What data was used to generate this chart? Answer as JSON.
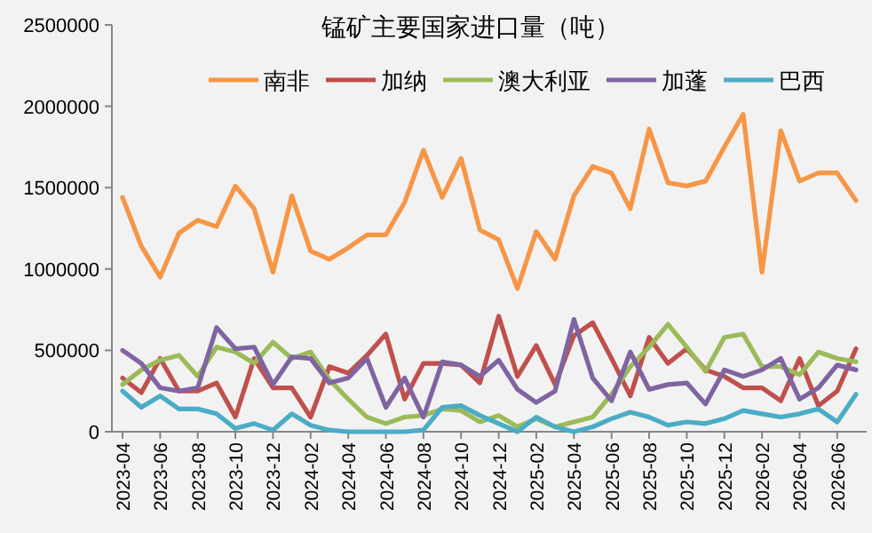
{
  "chart_data": {
    "type": "line",
    "title": "锰矿主要国家进口量（吨）",
    "categories": [
      "2023-04",
      null,
      "2023-06",
      null,
      "2023-08",
      null,
      "2023-10",
      null,
      "2023-12",
      null,
      "2024-02",
      null,
      "2024-04",
      null,
      "2024-06",
      null,
      "2024-08",
      null,
      "2024-10",
      null,
      "2024-12",
      null,
      "2025-02",
      null,
      "2025-04",
      null,
      "2025-06",
      null,
      "2025-08",
      null,
      "2025-10",
      null,
      "2025-12",
      null,
      "2026-02",
      null,
      "2026-04",
      null,
      "2026-06",
      null
    ],
    "series": [
      {
        "name": "南非",
        "color": "#f79646",
        "values": [
          1440000,
          1140000,
          950000,
          1220000,
          1300000,
          1260000,
          1510000,
          1370000,
          980000,
          1450000,
          1110000,
          1060000,
          1130000,
          1210000,
          1210000,
          1410000,
          1730000,
          1440000,
          1680000,
          1240000,
          1180000,
          880000,
          1230000,
          1060000,
          1450000,
          1630000,
          1590000,
          1370000,
          1860000,
          1530000,
          1510000,
          1540000,
          1750000,
          1950000,
          980000,
          1850000,
          1540000,
          1590000,
          1590000,
          1420000
        ]
      },
      {
        "name": "加纳",
        "color": "#c0504d",
        "values": [
          330000,
          240000,
          450000,
          250000,
          250000,
          300000,
          90000,
          450000,
          270000,
          270000,
          90000,
          400000,
          360000,
          470000,
          600000,
          200000,
          420000,
          420000,
          410000,
          300000,
          710000,
          340000,
          530000,
          290000,
          590000,
          670000,
          450000,
          220000,
          580000,
          420000,
          510000,
          380000,
          340000,
          270000,
          270000,
          190000,
          450000,
          160000,
          250000,
          510000
        ]
      },
      {
        "name": "澳大利亚",
        "color": "#9bbb59",
        "values": [
          290000,
          380000,
          440000,
          470000,
          340000,
          520000,
          490000,
          420000,
          550000,
          450000,
          490000,
          320000,
          200000,
          90000,
          50000,
          90000,
          100000,
          140000,
          130000,
          60000,
          100000,
          30000,
          80000,
          30000,
          60000,
          90000,
          230000,
          400000,
          520000,
          660000,
          520000,
          370000,
          580000,
          600000,
          400000,
          400000,
          350000,
          490000,
          450000,
          430000
        ]
      },
      {
        "name": "加蓬",
        "color": "#8064a2",
        "values": [
          500000,
          420000,
          270000,
          250000,
          270000,
          640000,
          510000,
          520000,
          290000,
          460000,
          450000,
          300000,
          330000,
          450000,
          150000,
          330000,
          90000,
          430000,
          410000,
          340000,
          440000,
          260000,
          180000,
          250000,
          690000,
          330000,
          190000,
          490000,
          260000,
          290000,
          300000,
          170000,
          380000,
          340000,
          380000,
          450000,
          200000,
          270000,
          410000,
          380000
        ]
      },
      {
        "name": "巴西",
        "color": "#4bacc6",
        "values": [
          250000,
          150000,
          220000,
          140000,
          140000,
          110000,
          20000,
          50000,
          10000,
          110000,
          40000,
          10000,
          0,
          0,
          0,
          0,
          10000,
          150000,
          160000,
          100000,
          50000,
          0,
          90000,
          30000,
          0,
          30000,
          80000,
          120000,
          90000,
          40000,
          60000,
          50000,
          80000,
          130000,
          110000,
          90000,
          110000,
          140000,
          60000,
          230000
        ]
      }
    ],
    "ylim": [
      0,
      2500000
    ],
    "yticks": [
      0,
      500000,
      1000000,
      1500000,
      2000000,
      2500000
    ],
    "grid": false,
    "legend": "top",
    "marker": "none",
    "line_style": "solid"
  }
}
